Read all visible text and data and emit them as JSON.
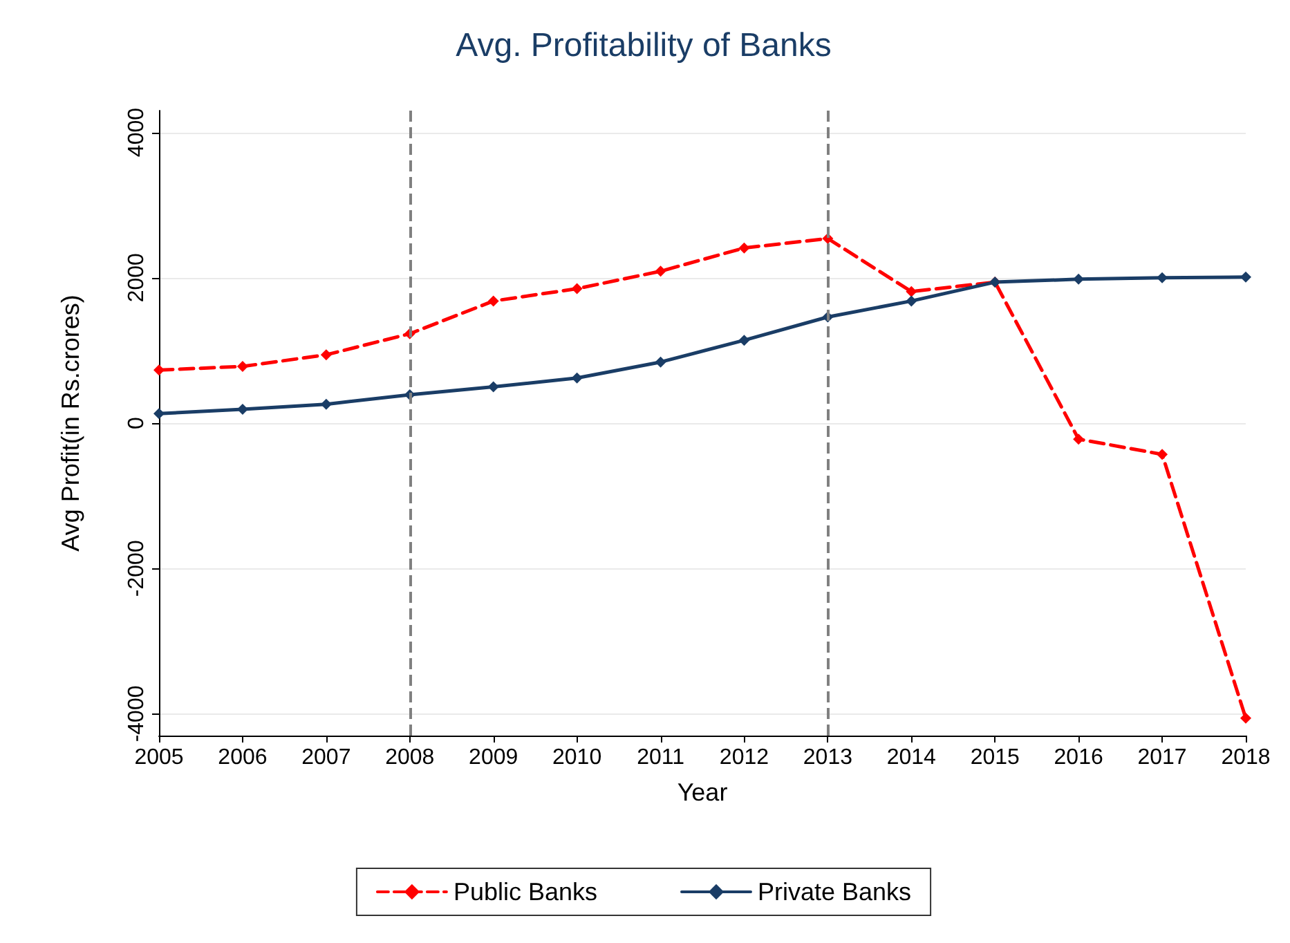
{
  "chart_data": {
    "type": "line",
    "title": "Avg. Profitability of Banks",
    "xlabel": "Year",
    "ylabel": "Avg Profit(in Rs.crores)",
    "categories": [
      "2005",
      "2006",
      "2007",
      "2008",
      "2009",
      "2010",
      "2011",
      "2012",
      "2013",
      "2014",
      "2015",
      "2016",
      "2017",
      "2018"
    ],
    "series": [
      {
        "name": "Public Banks",
        "color": "#ff0000",
        "line_style": "dashed",
        "values": [
          730,
          780,
          940,
          1230,
          1680,
          1850,
          2090,
          2410,
          2540,
          1810,
          1940,
          -220,
          -430,
          -4060
        ]
      },
      {
        "name": "Private Banks",
        "color": "#1a3d66",
        "line_style": "solid",
        "values": [
          130,
          190,
          260,
          390,
          500,
          620,
          840,
          1140,
          1460,
          1680,
          1940,
          1980,
          2000,
          2010
        ]
      }
    ],
    "marker": "diamond",
    "ylim": [
      -4300,
      4300
    ],
    "yticks": [
      -4000,
      -2000,
      0,
      2000,
      4000
    ],
    "grid": "y",
    "legend": "bottom",
    "ref_lines": [
      {
        "axis": "x",
        "value": "2008",
        "color": "#808080",
        "line_style": "dashed"
      },
      {
        "axis": "x",
        "value": "2013",
        "color": "#808080",
        "line_style": "dashed"
      }
    ]
  }
}
